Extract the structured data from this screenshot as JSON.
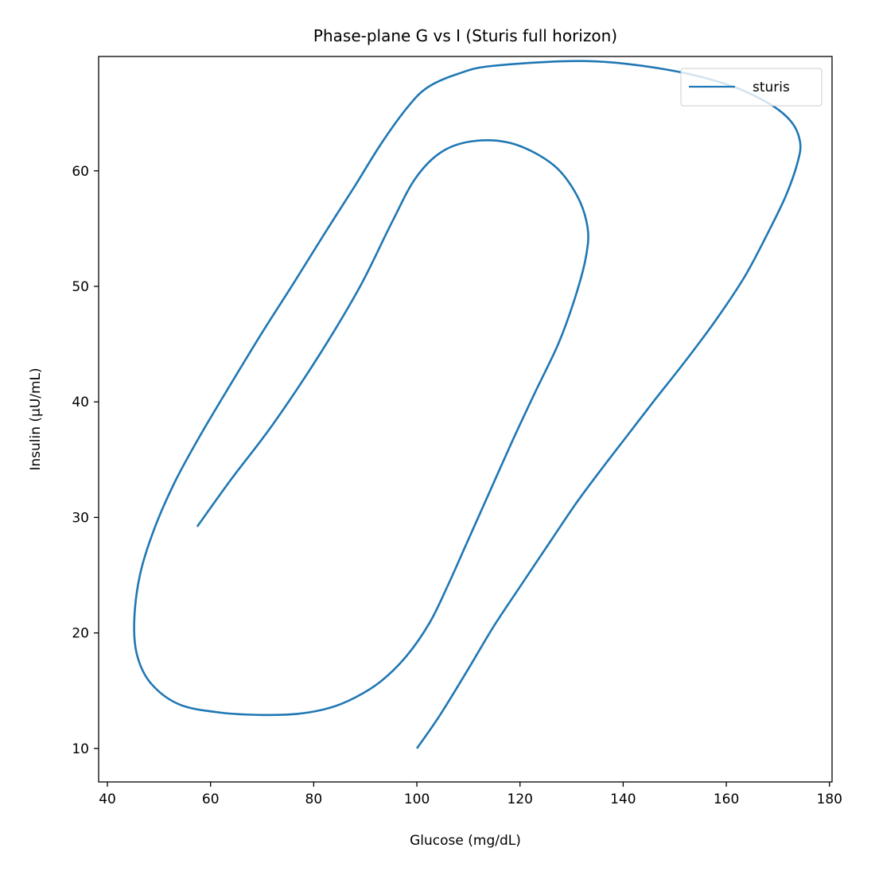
{
  "chart_data": {
    "type": "line",
    "title": "Phase-plane G vs I (Sturis full horizon)",
    "xlabel": "Glucose (mg/dL)",
    "ylabel": "Insulin (µU/mL)",
    "xlim": [
      38.3,
      180.5
    ],
    "ylim": [
      7.1,
      69.9
    ],
    "xticks": [
      40,
      60,
      80,
      100,
      120,
      140,
      160,
      180
    ],
    "xtick_labels": [
      "40",
      "60",
      "80",
      "100",
      "120",
      "140",
      "160",
      "180"
    ],
    "yticks": [
      10,
      20,
      30,
      40,
      50,
      60
    ],
    "ytick_labels": [
      "10",
      "20",
      "30",
      "40",
      "50",
      "60"
    ],
    "grid": false,
    "legend_position": "top-right",
    "series": [
      {
        "name": "sturis",
        "color": "#1f77b4",
        "x": [
          100.0,
          104.5,
          110.0,
          114.8,
          120.0,
          126.0,
          131.0,
          136.0,
          141.0,
          146.0,
          152.0,
          158.0,
          163.5,
          167.8,
          171.5,
          173.8,
          174.3,
          172.5,
          168.0,
          160.0,
          148.0,
          133.0,
          115.0,
          108.0,
          102.0,
          98.0,
          93.0,
          88.0,
          82.0,
          76.0,
          70.0,
          64.0,
          58.0,
          53.0,
          49.0,
          46.3,
          45.2,
          45.8,
          48.5,
          54.0,
          62.0,
          70.0,
          77.0,
          83.0,
          88.0,
          93.0,
          98.0,
          102.5,
          106.0,
          109.5,
          114.0,
          118.5,
          123.0,
          127.5,
          130.8,
          132.8,
          133.1,
          131.0,
          126.5,
          119.0,
          111.5,
          105.0,
          99.8,
          95.0,
          89.0,
          81.0,
          72.0,
          64.0,
          57.4
        ],
        "y": [
          10.0,
          12.9,
          16.9,
          20.5,
          24.0,
          28.0,
          31.3,
          34.3,
          37.2,
          40.1,
          43.5,
          47.1,
          50.8,
          54.4,
          57.8,
          60.7,
          62.5,
          64.3,
          65.9,
          67.5,
          68.8,
          69.5,
          69.1,
          68.4,
          67.2,
          65.4,
          62.3,
          58.7,
          54.5,
          50.2,
          46.0,
          41.6,
          37.1,
          33.0,
          28.9,
          25.0,
          21.0,
          18.0,
          15.6,
          13.8,
          13.1,
          12.9,
          13.0,
          13.5,
          14.4,
          15.8,
          18.0,
          20.9,
          24.1,
          27.6,
          32.1,
          36.6,
          40.9,
          45.1,
          49.2,
          52.6,
          55.1,
          57.9,
          60.5,
          62.3,
          62.6,
          61.7,
          59.4,
          55.4,
          50.0,
          44.0,
          38.0,
          33.3,
          29.2
        ]
      }
    ]
  }
}
